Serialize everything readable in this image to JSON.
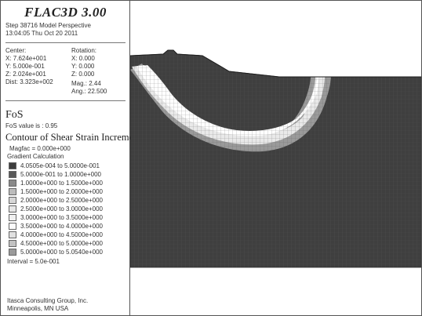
{
  "app_title": "FLAC3D 3.00",
  "step_line": "Step 38716  Model Perspective",
  "time_line": "13:04:05 Thu Oct 20 2011",
  "center": {
    "heading": "Center:",
    "x": "X: 7.624e+001",
    "y": "Y: 5.000e-001",
    "z": "Z: 2.024e+001",
    "dist": "Dist: 3.323e+002"
  },
  "rotation": {
    "heading": "Rotation:",
    "x": "X:  0.000",
    "y": "Y:  0.000",
    "z": "Z:  0.000",
    "mag": "Mag.:    2.44",
    "ang": "Ang.:  22.500"
  },
  "fos": {
    "heading": "FoS",
    "value_text": "FoS value is : 0.95"
  },
  "contour": {
    "heading": "Contour of Shear Strain Increment",
    "magfac": "Magfac = 0.000e+000",
    "gradient": "Gradient Calculation",
    "legend": [
      {
        "range": "4.0505e-004 to  5.0000e-001",
        "color": "#3d3d3d"
      },
      {
        "range": "5.0000e-001 to  1.0000e+000",
        "color": "#595959"
      },
      {
        "range": "1.0000e+000 to  1.5000e+000",
        "color": "#8a8a8a"
      },
      {
        "range": "1.5000e+000 to  2.0000e+000",
        "color": "#bcbcbc"
      },
      {
        "range": "2.0000e+000 to  2.5000e+000",
        "color": "#d6d6d6"
      },
      {
        "range": "2.5000e+000 to  3.0000e+000",
        "color": "#e6e6e6"
      },
      {
        "range": "3.0000e+000 to  3.5000e+000",
        "color": "#f1f1f1"
      },
      {
        "range": "3.5000e+000 to  4.0000e+000",
        "color": "#fafafa"
      },
      {
        "range": "4.0000e+000 to  4.5000e+000",
        "color": "#e0e0e0"
      },
      {
        "range": "4.5000e+000 to  5.0000e+000",
        "color": "#c2c2c2"
      },
      {
        "range": "5.0000e+000 to  5.0540e+000",
        "color": "#9a9a9a"
      }
    ],
    "interval": "Interval =  5.0e-001"
  },
  "footer": {
    "company": "Itasca Consulting Group, Inc.",
    "location": "Minneapolis, MN  USA"
  },
  "colors": {
    "mesh_dark": "#3f3f3f",
    "mesh_line": "#5a5a5a",
    "band_light": "#e9e9e9",
    "band_mid": "#b5b5b5"
  }
}
